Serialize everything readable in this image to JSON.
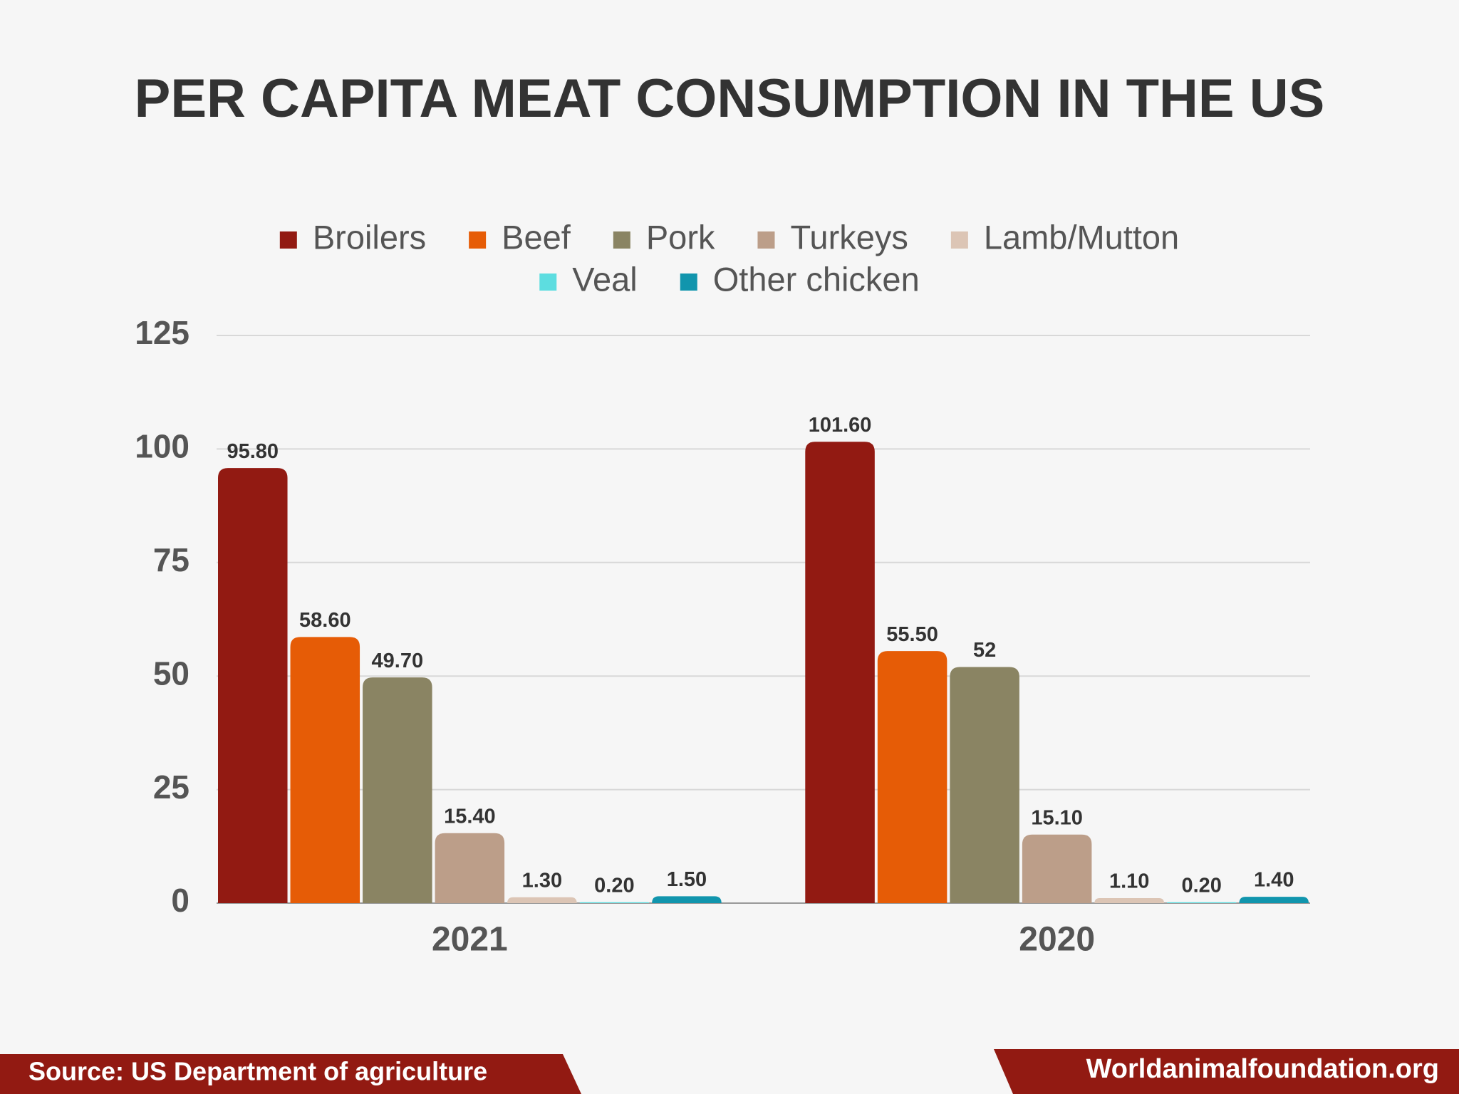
{
  "chart_data": {
    "type": "bar",
    "title": "PER CAPITA MEAT CONSUMPTION IN THE US",
    "categories": [
      "2021",
      "2020"
    ],
    "series": [
      {
        "name": "Broilers",
        "color": "#921a12",
        "values": [
          95.8,
          101.6
        ],
        "value_labels": [
          "95.80",
          "101.60"
        ]
      },
      {
        "name": "Beef",
        "color": "#e65c06",
        "values": [
          58.6,
          55.5
        ],
        "value_labels": [
          "58.60",
          "55.50"
        ]
      },
      {
        "name": "Pork",
        "color": "#8a8463",
        "values": [
          49.7,
          52
        ],
        "value_labels": [
          "49.70",
          "52"
        ]
      },
      {
        "name": "Turkeys",
        "color": "#bc9e89",
        "values": [
          15.4,
          15.1
        ],
        "value_labels": [
          "15.40",
          "15.10"
        ]
      },
      {
        "name": "Lamb/Mutton",
        "color": "#dcc5b5",
        "values": [
          1.3,
          1.1
        ],
        "value_labels": [
          "1.30",
          "1.10"
        ]
      },
      {
        "name": "Veal",
        "color": "#5ddde0",
        "values": [
          0.2,
          0.2
        ],
        "value_labels": [
          "0.20",
          "0.20"
        ]
      },
      {
        "name": "Other chicken",
        "color": "#1195ad",
        "values": [
          1.5,
          1.4
        ],
        "value_labels": [
          "1.50",
          "1.40"
        ]
      }
    ],
    "ylim": [
      0,
      125
    ],
    "yticks": [
      0,
      25,
      50,
      75,
      100,
      125
    ],
    "grid": true,
    "source": "Source: US Department of agriculture",
    "website": "Worldanimalfoundation.org"
  }
}
